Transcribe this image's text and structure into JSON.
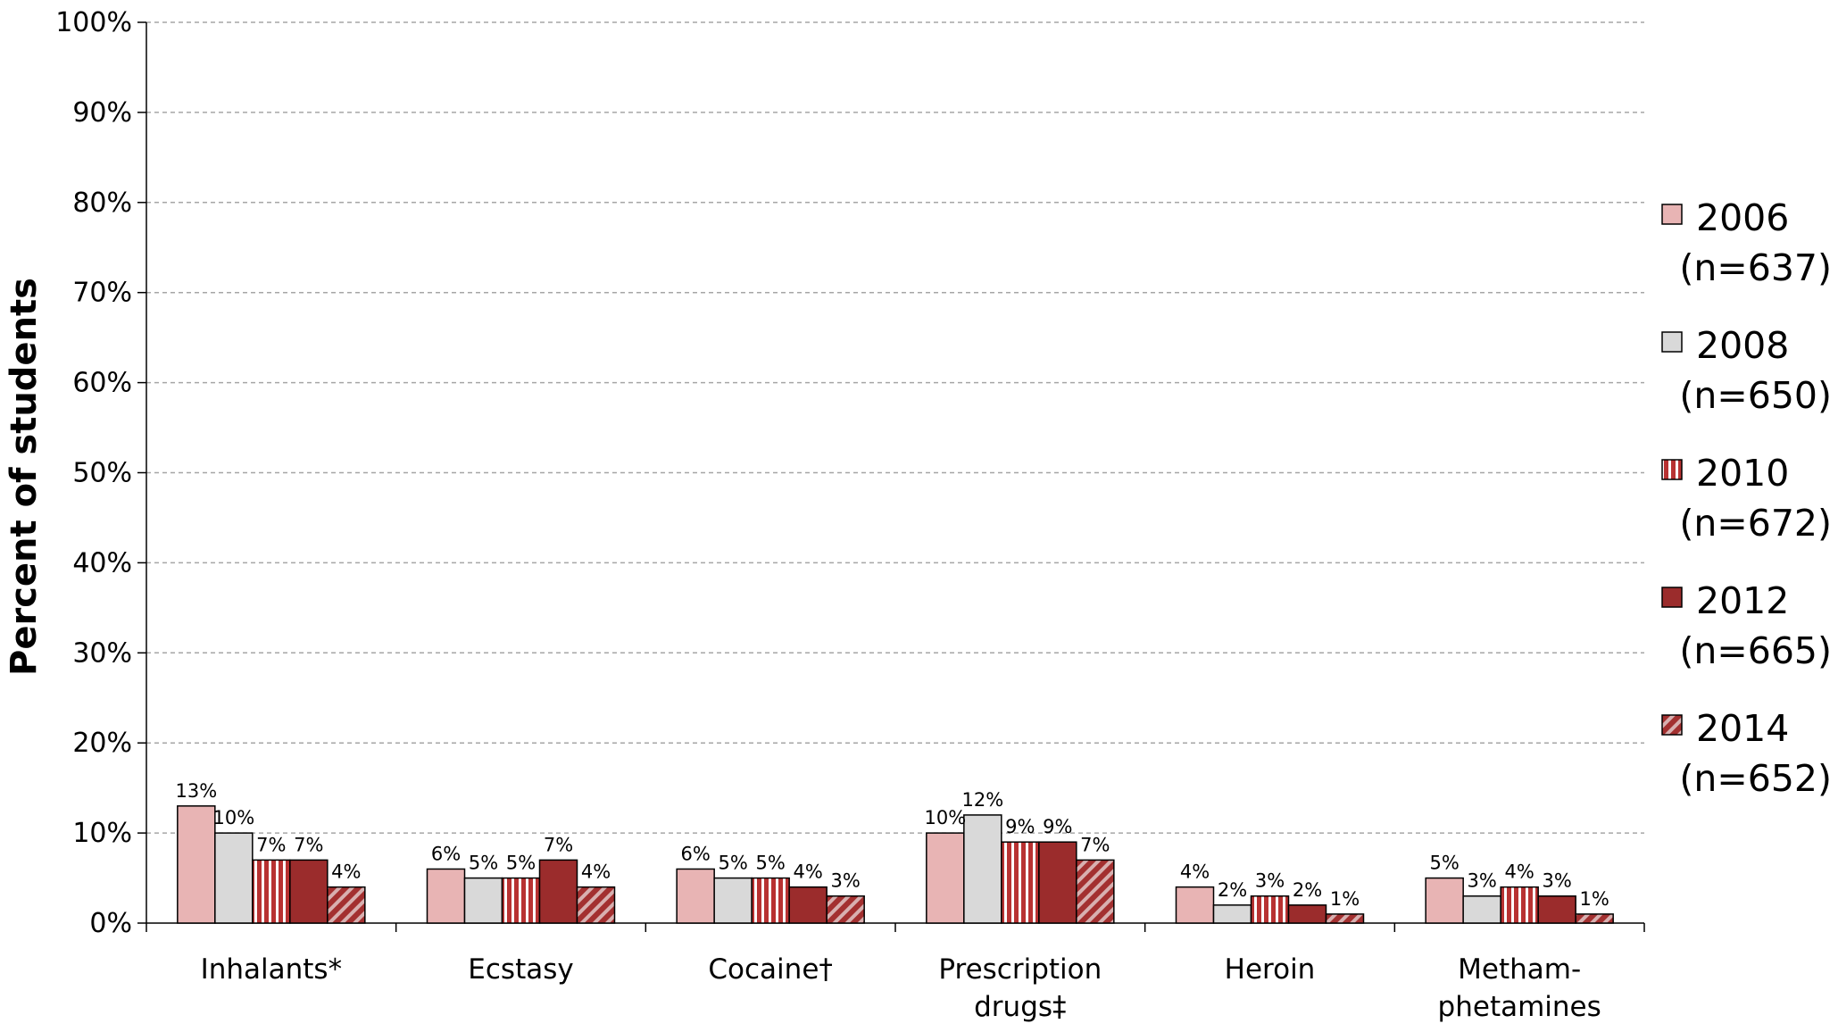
{
  "chart_data": {
    "type": "bar",
    "title": "",
    "xlabel": "",
    "ylabel": "Percent of students",
    "ylim": [
      0,
      100
    ],
    "yticks": [
      "0%",
      "10%",
      "20%",
      "30%",
      "40%",
      "50%",
      "60%",
      "70%",
      "80%",
      "90%",
      "100%"
    ],
    "grid": true,
    "legend_position": "right",
    "categories": [
      [
        "Inhalants*"
      ],
      [
        "Ecstasy"
      ],
      [
        "Cocaine†"
      ],
      [
        "Prescription",
        "drugs‡"
      ],
      [
        "Heroin"
      ],
      [
        "Metham-",
        "phetamines"
      ]
    ],
    "series": [
      {
        "name": "2006",
        "sub": "(n=637)",
        "values": [
          13,
          6,
          6,
          10,
          4,
          5
        ],
        "labels": [
          "13%",
          "6%",
          "6%",
          "10%",
          "4%",
          "5%"
        ],
        "color": "#e8b4b4",
        "pattern": "solid"
      },
      {
        "name": "2008",
        "sub": "(n=650)",
        "values": [
          10,
          5,
          5,
          12,
          2,
          3
        ],
        "labels": [
          "10%",
          "5%",
          "5%",
          "12%",
          "2%",
          "3%"
        ],
        "color": "#d9d9d9",
        "pattern": "solid"
      },
      {
        "name": "2010",
        "sub": "(n=672)",
        "values": [
          7,
          5,
          5,
          9,
          3,
          4
        ],
        "labels": [
          "7%",
          "5%",
          "5%",
          "9%",
          "3%",
          "4%"
        ],
        "color": "#b83232",
        "pattern": "vertical-stripes"
      },
      {
        "name": "2012",
        "sub": "(n=665)",
        "values": [
          7,
          7,
          4,
          9,
          2,
          3
        ],
        "labels": [
          "7%",
          "7%",
          "4%",
          "9%",
          "2%",
          "3%"
        ],
        "color": "#9b2c2c",
        "pattern": "solid"
      },
      {
        "name": "2014",
        "sub": "(n=652)",
        "values": [
          4,
          4,
          3,
          7,
          1,
          1
        ],
        "labels": [
          "4%",
          "4%",
          "3%",
          "7%",
          "1%",
          "1%"
        ],
        "color": "#a33030",
        "pattern": "diagonal-stripes"
      }
    ]
  }
}
